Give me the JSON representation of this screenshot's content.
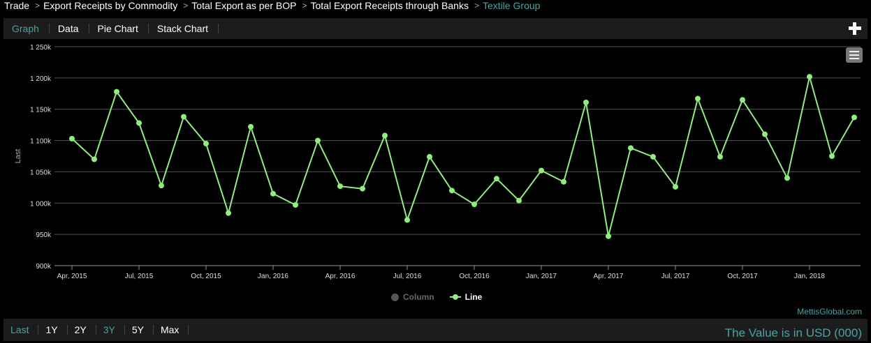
{
  "breadcrumb": {
    "items": [
      "Trade",
      "Export Receipts by Commodity",
      "Total Export as per BOP",
      "Total Export Receipts through Banks",
      "Textile Group"
    ],
    "separator": ">"
  },
  "tabs": {
    "items": [
      "Graph",
      "Data",
      "Pie Chart",
      "Stack Chart"
    ],
    "active": "Graph"
  },
  "legend": {
    "column_label": "Column",
    "line_label": "Line"
  },
  "credits": "MettisGlobal.com",
  "ranges": {
    "items": [
      "Last",
      "1Y",
      "2Y",
      "3Y",
      "5Y",
      "Max"
    ],
    "active": [
      "Last",
      "3Y"
    ]
  },
  "value_note": "The Value is in USD (000)",
  "colors": {
    "line": "#90ee7e",
    "accent": "#4aa3a3",
    "background": "#000000"
  },
  "icons": {
    "add": "plus-icon",
    "menu": "hamburger-menu-icon"
  },
  "chart_data": {
    "type": "line",
    "ylabel": "Last",
    "ylim": [
      900000,
      1250000
    ],
    "yticks": [
      900000,
      950000,
      1000000,
      1050000,
      1100000,
      1150000,
      1200000,
      1250000
    ],
    "ytick_labels": [
      "900k",
      "950k",
      "1 000k",
      "1 050k",
      "1 100k",
      "1 150k",
      "1 200k",
      "1 250k"
    ],
    "xtick_labels": [
      "Apr, 2015",
      "Jul, 2015",
      "Oct, 2015",
      "Jan, 2016",
      "Apr, 2016",
      "Jul, 2016",
      "Oct, 2016",
      "Jan, 2017",
      "Apr, 2017",
      "Jul, 2017",
      "Oct, 2017",
      "Jan, 2018"
    ],
    "x": [
      "2015-04",
      "2015-05",
      "2015-06",
      "2015-07",
      "2015-08",
      "2015-09",
      "2015-10",
      "2015-11",
      "2015-12",
      "2016-01",
      "2016-02",
      "2016-03",
      "2016-04",
      "2016-05",
      "2016-06",
      "2016-07",
      "2016-08",
      "2016-09",
      "2016-10",
      "2016-11",
      "2016-12",
      "2017-01",
      "2017-02",
      "2017-03",
      "2017-04",
      "2017-05",
      "2017-06",
      "2017-07",
      "2017-08",
      "2017-09",
      "2017-10",
      "2017-11",
      "2017-12",
      "2018-01",
      "2018-02",
      "2018-03"
    ],
    "series": [
      {
        "name": "Line",
        "values": [
          1103000,
          1070000,
          1178000,
          1128000,
          1028000,
          1138000,
          1095000,
          984000,
          1122000,
          1015000,
          997000,
          1100000,
          1027000,
          1023000,
          1108000,
          973000,
          1074000,
          1020000,
          998000,
          1039000,
          1004000,
          1052000,
          1034000,
          1161000,
          947000,
          1088000,
          1074000,
          1026000,
          1167000,
          1074000,
          1165000,
          1110000,
          1040000,
          1202000,
          1075000,
          1137000
        ]
      }
    ],
    "grid": true,
    "legend_position": "bottom"
  }
}
